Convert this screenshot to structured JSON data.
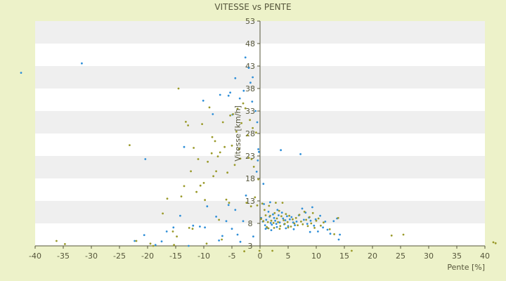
{
  "chart_data": {
    "type": "scatter",
    "title": "VITESSE vs PENTE",
    "xlabel": "Pente [%]",
    "ylabel": "Vitesse [km/h]",
    "xlim": [
      -40,
      40
    ],
    "ylim": [
      3,
      53
    ],
    "xticks": [
      -40,
      -35,
      -30,
      -25,
      -20,
      -15,
      -10,
      -5,
      0,
      5,
      10,
      15,
      20,
      25,
      30,
      35,
      40
    ],
    "yticks": [
      3,
      8,
      13,
      18,
      23,
      28,
      33,
      38,
      43,
      48,
      53
    ],
    "grid": "horizontal-bands",
    "legend": "none",
    "colors": {
      "background": "#edf2c9",
      "plot": "#ffffff",
      "band": "#efefef",
      "series_blue": "#2f8fd8",
      "series_olive": "#9a9a2a",
      "axis": "#55553a"
    },
    "series": [
      {
        "color": "#2f8fd8",
        "points": [
          [
            -42.5,
            41.5
          ],
          [
            -31.7,
            43.6
          ],
          [
            -20.4,
            22.3
          ],
          [
            -13.5,
            25.0
          ],
          [
            -10.1,
            35.3
          ],
          [
            -8.4,
            32.3
          ],
          [
            -7.1,
            36.6
          ],
          [
            -5.6,
            36.4
          ],
          [
            -5.3,
            37.1
          ],
          [
            -4.9,
            32.2
          ],
          [
            -4.4,
            40.3
          ],
          [
            -3.6,
            35.8
          ],
          [
            -2.9,
            37.5
          ],
          [
            -2.6,
            44.9
          ],
          [
            -2.0,
            42.6
          ],
          [
            -1.7,
            39.3
          ],
          [
            -1.4,
            35.1
          ],
          [
            -1.3,
            40.5
          ],
          [
            -0.8,
            33.0
          ],
          [
            -0.5,
            30.5
          ],
          [
            -0.3,
            24.5
          ],
          [
            -0.2,
            23.9
          ],
          [
            -0.4,
            22.0
          ],
          [
            -0.6,
            19.5
          ],
          [
            -2.5,
            14.2
          ],
          [
            -3.0,
            8.5
          ],
          [
            -4.4,
            11.0
          ],
          [
            -5.6,
            12.1
          ],
          [
            -6.0,
            8.5
          ],
          [
            -6.7,
            5.2
          ],
          [
            -7.8,
            9.5
          ],
          [
            -9.4,
            11.8
          ],
          [
            -9.8,
            7.1
          ],
          [
            -10.7,
            7.3
          ],
          [
            -11.9,
            7.5
          ],
          [
            -12.7,
            3.0
          ],
          [
            -14.2,
            9.7
          ],
          [
            -15.4,
            7.1
          ],
          [
            -16.6,
            6.2
          ],
          [
            -17.5,
            4.0
          ],
          [
            -18.6,
            3.2
          ],
          [
            -20.6,
            5.4
          ],
          [
            -22.3,
            4.1
          ],
          [
            -4.0,
            5.5
          ],
          [
            -5.0,
            6.8
          ],
          [
            -7.3,
            4.2
          ],
          [
            -3.5,
            3.9
          ],
          [
            -1.2,
            5.1
          ],
          [
            0.2,
            9.2
          ],
          [
            0.5,
            8.4
          ],
          [
            0.6,
            16.8
          ],
          [
            0.9,
            7.6
          ],
          [
            1.1,
            8.8
          ],
          [
            1.3,
            7.0
          ],
          [
            1.5,
            10.6
          ],
          [
            1.7,
            9.5
          ],
          [
            1.9,
            8.1
          ],
          [
            2.1,
            7.7
          ],
          [
            2.3,
            10.0
          ],
          [
            2.5,
            9.2
          ],
          [
            2.7,
            8.6
          ],
          [
            2.9,
            7.9
          ],
          [
            3.1,
            11.0
          ],
          [
            3.3,
            9.8
          ],
          [
            3.5,
            8.2
          ],
          [
            3.7,
            24.3
          ],
          [
            3.9,
            10.4
          ],
          [
            4.1,
            9.1
          ],
          [
            4.3,
            7.8
          ],
          [
            4.5,
            8.7
          ],
          [
            4.8,
            9.6
          ],
          [
            5.0,
            7.4
          ],
          [
            5.3,
            8.9
          ],
          [
            5.6,
            9.4
          ],
          [
            5.9,
            8.2
          ],
          [
            6.2,
            7.6
          ],
          [
            6.5,
            8.4
          ],
          [
            6.9,
            9.8
          ],
          [
            7.2,
            23.4
          ],
          [
            7.5,
            11.3
          ],
          [
            7.8,
            8.8
          ],
          [
            8.1,
            10.4
          ],
          [
            8.4,
            7.9
          ],
          [
            8.7,
            9.3
          ],
          [
            9.0,
            8.6
          ],
          [
            9.3,
            11.6
          ],
          [
            9.6,
            7.5
          ],
          [
            9.9,
            8.9
          ],
          [
            10.3,
            6.2
          ],
          [
            10.7,
            9.7
          ],
          [
            11.2,
            7.1
          ],
          [
            11.6,
            8.4
          ],
          [
            12.0,
            6.6
          ],
          [
            12.5,
            5.7
          ],
          [
            13.1,
            8.5
          ],
          [
            13.7,
            9.1
          ],
          [
            14.2,
            5.5
          ],
          [
            14.0,
            4.4
          ],
          [
            1.0,
            6.8
          ],
          [
            2.0,
            6.5
          ],
          [
            3.0,
            7.2
          ],
          [
            4.6,
            6.9
          ],
          [
            0.7,
            12.3
          ],
          [
            1.8,
            12.7
          ],
          [
            6.0,
            6.7
          ],
          [
            8.9,
            6.1
          ]
        ]
      },
      {
        "color": "#9a9a2a",
        "points": [
          [
            -36.2,
            4.1
          ],
          [
            -34.7,
            3.4
          ],
          [
            -23.2,
            25.4
          ],
          [
            -22.0,
            4.1
          ],
          [
            -19.5,
            3.5
          ],
          [
            -19.0,
            3.0
          ],
          [
            -17.3,
            10.2
          ],
          [
            -16.5,
            13.5
          ],
          [
            -15.5,
            6.2
          ],
          [
            -15.3,
            3.2
          ],
          [
            -14.8,
            5.1
          ],
          [
            -14.5,
            38.0
          ],
          [
            -14.0,
            14.0
          ],
          [
            -13.5,
            16.3
          ],
          [
            -13.2,
            30.6
          ],
          [
            -12.8,
            29.8
          ],
          [
            -12.6,
            7.0
          ],
          [
            -12.3,
            19.6
          ],
          [
            -12.0,
            6.8
          ],
          [
            -11.8,
            24.8
          ],
          [
            -11.3,
            15.0
          ],
          [
            -11.0,
            22.3
          ],
          [
            -10.6,
            16.4
          ],
          [
            -10.3,
            30.1
          ],
          [
            -10.0,
            17.0
          ],
          [
            -9.8,
            13.2
          ],
          [
            -9.5,
            3.5
          ],
          [
            -9.3,
            21.7
          ],
          [
            -9.0,
            33.8
          ],
          [
            -8.6,
            23.6
          ],
          [
            -8.5,
            27.2
          ],
          [
            -8.3,
            18.5
          ],
          [
            -8.0,
            26.3
          ],
          [
            -7.8,
            19.6
          ],
          [
            -7.5,
            22.9
          ],
          [
            -7.3,
            8.8
          ],
          [
            -7.1,
            23.8
          ],
          [
            -6.8,
            4.4
          ],
          [
            -6.6,
            30.5
          ],
          [
            -6.3,
            25.0
          ],
          [
            -6.0,
            13.3
          ],
          [
            -5.8,
            19.3
          ],
          [
            -5.5,
            12.6
          ],
          [
            -5.3,
            32.0
          ],
          [
            -5.0,
            25.3
          ],
          [
            -4.8,
            32.3
          ],
          [
            -4.5,
            21.0
          ],
          [
            -4.2,
            28.4
          ],
          [
            -4.0,
            33.5
          ],
          [
            -3.7,
            24.6
          ],
          [
            -3.5,
            22.4
          ],
          [
            -3.3,
            30.3
          ],
          [
            -3.0,
            34.7
          ],
          [
            -2.8,
            1.8
          ],
          [
            -2.6,
            33.6
          ],
          [
            -2.4,
            12.6
          ],
          [
            -2.2,
            27.6
          ],
          [
            -2.0,
            22.6
          ],
          [
            -1.8,
            31.0
          ],
          [
            -1.6,
            11.8
          ],
          [
            -1.5,
            22.3
          ],
          [
            -1.3,
            29.2
          ],
          [
            -1.1,
            20.6
          ],
          [
            -0.9,
            13.8
          ],
          [
            -0.7,
            28.2
          ],
          [
            -0.5,
            12.0
          ],
          [
            -0.3,
            17.8
          ],
          [
            -0.1,
            1.9
          ],
          [
            0.2,
            9.0
          ],
          [
            0.4,
            12.4
          ],
          [
            0.6,
            8.5
          ],
          [
            0.8,
            11.0
          ],
          [
            1.0,
            9.8
          ],
          [
            1.2,
            7.2
          ],
          [
            1.4,
            8.3
          ],
          [
            1.6,
            11.9
          ],
          [
            1.8,
            9.7
          ],
          [
            2.0,
            8.6
          ],
          [
            2.2,
            1.9
          ],
          [
            2.4,
            8.1
          ],
          [
            2.6,
            10.3
          ],
          [
            2.8,
            12.6
          ],
          [
            3.0,
            9.1
          ],
          [
            3.2,
            8.3
          ],
          [
            3.4,
            10.8
          ],
          [
            3.6,
            7.4
          ],
          [
            3.8,
            9.6
          ],
          [
            4.0,
            12.6
          ],
          [
            4.2,
            8.7
          ],
          [
            4.4,
            7.9
          ],
          [
            4.6,
            10.1
          ],
          [
            4.9,
            8.3
          ],
          [
            5.2,
            9.7
          ],
          [
            5.5,
            7.3
          ],
          [
            5.8,
            8.9
          ],
          [
            6.1,
            8.0
          ],
          [
            6.4,
            9.2
          ],
          [
            6.7,
            7.6
          ],
          [
            7.0,
            9.9
          ],
          [
            7.3,
            8.4
          ],
          [
            7.6,
            7.8
          ],
          [
            7.9,
            10.6
          ],
          [
            8.2,
            8.8
          ],
          [
            8.5,
            7.4
          ],
          [
            8.8,
            9.4
          ],
          [
            9.1,
            8.0
          ],
          [
            9.4,
            10.3
          ],
          [
            9.7,
            7.0
          ],
          [
            10.0,
            8.6
          ],
          [
            10.4,
            9.1
          ],
          [
            10.8,
            7.5
          ],
          [
            11.3,
            8.2
          ],
          [
            12.4,
            6.7
          ],
          [
            13.2,
            5.6
          ],
          [
            13.9,
            9.2
          ],
          [
            16.3,
            1.9
          ],
          [
            23.4,
            5.3
          ],
          [
            25.5,
            5.5
          ],
          [
            41.9,
            3.6
          ],
          [
            41.5,
            3.8
          ],
          [
            1.5,
            6.9
          ],
          [
            2.5,
            7.0
          ],
          [
            3.5,
            6.8
          ],
          [
            5.0,
            7.1
          ]
        ]
      }
    ]
  }
}
